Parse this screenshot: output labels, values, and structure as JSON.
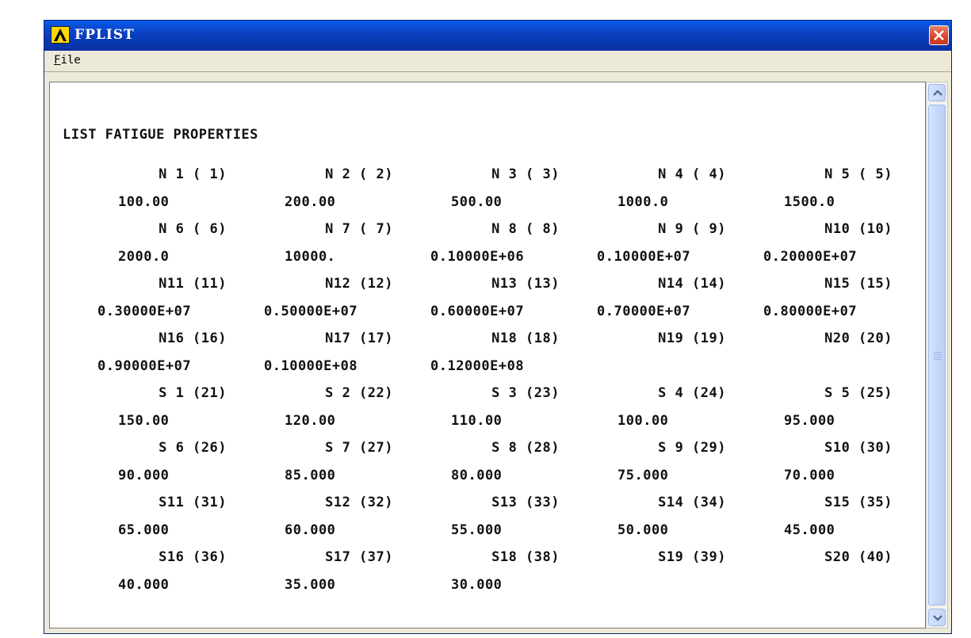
{
  "window": {
    "title": "FPLIST"
  },
  "menu": {
    "file": "File"
  },
  "content": {
    "heading": "LIST FATIGUE PROPERTIES",
    "rows": [
      [
        "N 1 ( 1)",
        "N 2 ( 2)",
        "N 3 ( 3)",
        "N 4 ( 4)",
        "N 5 ( 5)"
      ],
      [
        "100.00",
        "200.00",
        "500.00",
        "1000.0",
        "1500.0"
      ],
      [
        "N 6 ( 6)",
        "N 7 ( 7)",
        "N 8 ( 8)",
        "N 9 ( 9)",
        "N10 (10)"
      ],
      [
        "2000.0",
        "10000.",
        "0.10000E+06",
        "0.10000E+07",
        "0.20000E+07"
      ],
      [
        "N11 (11)",
        "N12 (12)",
        "N13 (13)",
        "N14 (14)",
        "N15 (15)"
      ],
      [
        "0.30000E+07",
        "0.50000E+07",
        "0.60000E+07",
        "0.70000E+07",
        "0.80000E+07"
      ],
      [
        "N16 (16)",
        "N17 (17)",
        "N18 (18)",
        "N19 (19)",
        "N20 (20)"
      ],
      [
        "0.90000E+07",
        "0.10000E+08",
        "0.12000E+08",
        "",
        ""
      ],
      [
        "S 1 (21)",
        "S 2 (22)",
        "S 3 (23)",
        "S 4 (24)",
        "S 5 (25)"
      ],
      [
        "150.00",
        "120.00",
        "110.00",
        "100.00",
        "95.000"
      ],
      [
        "S 6 (26)",
        "S 7 (27)",
        "S 8 (28)",
        "S 9 (29)",
        "S10 (30)"
      ],
      [
        "90.000",
        "85.000",
        "80.000",
        "75.000",
        "70.000"
      ],
      [
        "S11 (31)",
        "S12 (32)",
        "S13 (33)",
        "S14 (34)",
        "S15 (35)"
      ],
      [
        "65.000",
        "60.000",
        "55.000",
        "50.000",
        "45.000"
      ],
      [
        "S16 (36)",
        "S17 (37)",
        "S18 (38)",
        "S19 (39)",
        "S20 (40)"
      ],
      [
        "40.000",
        "35.000",
        "30.000",
        "",
        ""
      ]
    ]
  },
  "icons": {
    "app": "ansys-logo-icon",
    "close": "close-icon",
    "scroll_up": "scroll-up-arrow-icon",
    "scroll_down": "scroll-down-arrow-icon"
  },
  "colors": {
    "titlebar": "#0a3fbf",
    "close": "#d9442a",
    "scrollbar": "#c6d7f8"
  }
}
